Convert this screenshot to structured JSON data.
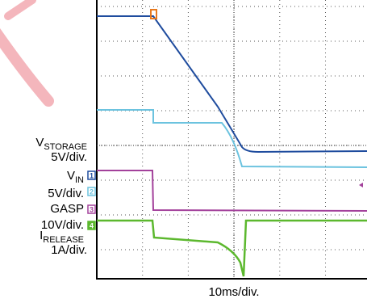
{
  "labels": [
    {
      "symbol": "V",
      "subscript": "STORAGE",
      "scale": "5V/div."
    },
    {
      "symbol": "V",
      "subscript": "IN",
      "scale": "5V/div."
    },
    {
      "name": "GASP",
      "scale": "10V/div."
    },
    {
      "symbol": "I",
      "subscript": "RELEASE",
      "scale": "1A/div."
    }
  ],
  "channels": [
    "1",
    "2",
    "3",
    "4"
  ],
  "time_scale": "10ms/div."
}
